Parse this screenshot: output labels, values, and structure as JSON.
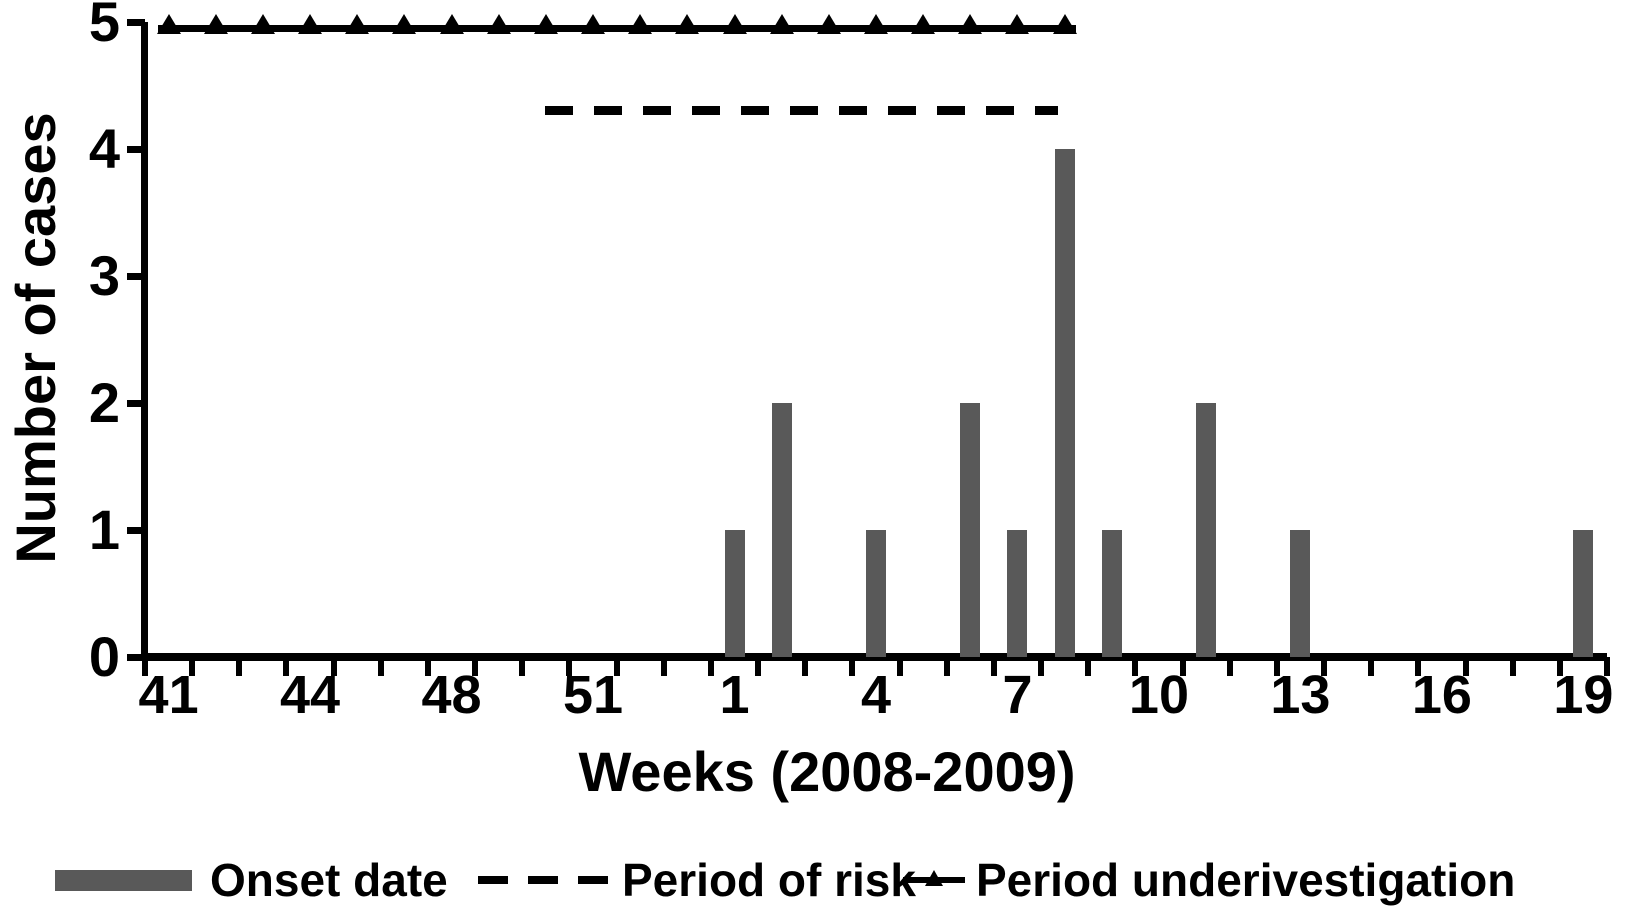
{
  "chart_data": {
    "type": "bar",
    "title": "",
    "xlabel": "Weeks (2008-2009)",
    "ylabel": "Number of cases",
    "ylim": [
      0,
      5
    ],
    "yticks": [
      0,
      1,
      2,
      3,
      4,
      5
    ],
    "x_axis": {
      "unit": "week",
      "total_slots": 31,
      "first_week_label": "41",
      "tick_labels": [
        {
          "slot": 0,
          "label": "41"
        },
        {
          "slot": 3,
          "label": "44"
        },
        {
          "slot": 6,
          "label": "48"
        },
        {
          "slot": 9,
          "label": "51"
        },
        {
          "slot": 12,
          "label": "1"
        },
        {
          "slot": 15,
          "label": "4"
        },
        {
          "slot": 18,
          "label": "7"
        },
        {
          "slot": 21,
          "label": "10"
        },
        {
          "slot": 24,
          "label": "13"
        },
        {
          "slot": 27,
          "label": "16"
        },
        {
          "slot": 30,
          "label": "19"
        }
      ]
    },
    "bars": {
      "name": "Onset date",
      "points": [
        {
          "week": "1",
          "slot": 12,
          "cases": 1
        },
        {
          "week": "2",
          "slot": 13,
          "cases": 2
        },
        {
          "week": "4",
          "slot": 15,
          "cases": 1
        },
        {
          "week": "6",
          "slot": 17,
          "cases": 2
        },
        {
          "week": "7",
          "slot": 18,
          "cases": 1
        },
        {
          "week": "8",
          "slot": 19,
          "cases": 4
        },
        {
          "week": "9",
          "slot": 20,
          "cases": 1
        },
        {
          "week": "11",
          "slot": 22,
          "cases": 2
        },
        {
          "week": "13",
          "slot": 24,
          "cases": 1
        },
        {
          "week": "19",
          "slot": 30,
          "cases": 1
        }
      ],
      "total_cases": 16
    },
    "risk_line": {
      "name": "Period of risk",
      "style": "dashed",
      "y_value": 4.3,
      "start_slot": 8.48,
      "end_slot": 19.36
    },
    "investigation_line": {
      "name": "Period underivestigation",
      "style": "solid-with-triangle-markers",
      "y_value": 4.95,
      "first_marker_slot": 0,
      "last_marker_slot": 19,
      "marker_count": 20
    },
    "legend": [
      {
        "label": "Onset date",
        "symbol": "bar-swatch"
      },
      {
        "label": "Period of risk",
        "symbol": "dashed-line"
      },
      {
        "label": "Period underivestigation",
        "symbol": "triangle-line"
      }
    ],
    "colors": {
      "bar": "#595959",
      "line": "#000000",
      "text": "#000000"
    }
  }
}
